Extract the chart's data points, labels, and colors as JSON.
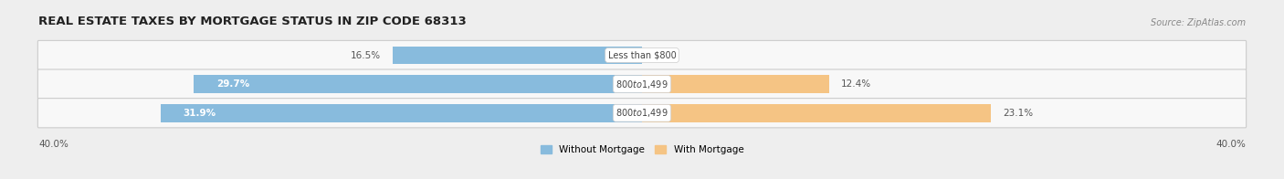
{
  "title": "REAL ESTATE TAXES BY MORTGAGE STATUS IN ZIP CODE 68313",
  "source": "Source: ZipAtlas.com",
  "rows": [
    {
      "label": "Less than $800",
      "without_mortgage": 16.5,
      "with_mortgage": 0.0
    },
    {
      "label": "$800 to $1,499",
      "without_mortgage": 29.7,
      "with_mortgage": 12.4
    },
    {
      "label": "$800 to $1,499",
      "without_mortgage": 31.9,
      "with_mortgage": 23.1
    }
  ],
  "xlim": [
    -40,
    40
  ],
  "x_left_label": "40.0%",
  "x_right_label": "40.0%",
  "color_without": "#88BBDD",
  "color_with": "#F5C484",
  "bar_height": 0.62,
  "bg_color": "#EEEEEE",
  "row_bg": "#F8F8F8",
  "legend_without": "Without Mortgage",
  "legend_with": "With Mortgage",
  "title_fontsize": 9.5,
  "source_fontsize": 7,
  "bar_label_fontsize": 7.5,
  "cat_label_fontsize": 7,
  "tick_fontsize": 7.5
}
